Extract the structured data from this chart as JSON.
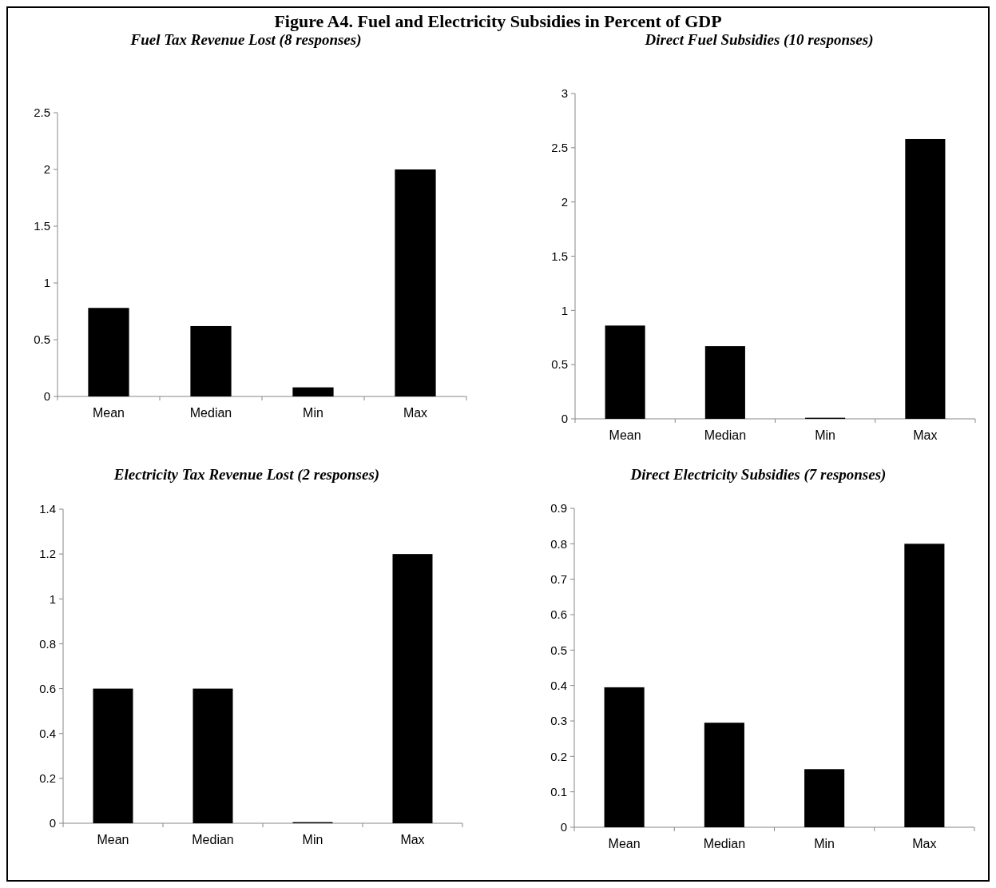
{
  "chart_data": [
    {
      "type": "bar",
      "title": "Figure A4. Fuel and Electricity Subsidies in Percent of GDP",
      "subtitle": "Fuel Tax Revenue Lost (8 responses)",
      "categories": [
        "Mean",
        "Median",
        "Min",
        "Max"
      ],
      "values": [
        0.78,
        0.62,
        0.08,
        2.0
      ],
      "color": "#000000",
      "ylim": [
        0,
        2.5
      ],
      "yticks": [
        0,
        0.5,
        1,
        1.5,
        2,
        2.5
      ]
    },
    {
      "type": "bar",
      "subtitle": "Direct Fuel Subsidies (10 responses)",
      "categories": [
        "Mean",
        "Median",
        "Min",
        "Max"
      ],
      "values": [
        0.86,
        0.67,
        0.01,
        2.58
      ],
      "color": "#000000",
      "ylim": [
        0,
        3
      ],
      "yticks": [
        0,
        0.5,
        1,
        1.5,
        2,
        2.5,
        3
      ]
    },
    {
      "type": "bar",
      "subtitle": "Electricity Tax Revenue Lost (2 responses)",
      "categories": [
        "Mean",
        "Median",
        "Min",
        "Max"
      ],
      "values": [
        0.6,
        0.6,
        0.005,
        1.2
      ],
      "color": "#000000",
      "ylim": [
        0,
        1.4
      ],
      "yticks": [
        0,
        0.2,
        0.4,
        0.6,
        0.8,
        1,
        1.2,
        1.4
      ]
    },
    {
      "type": "bar",
      "subtitle": "Direct Electricity Subsidies (7 responses)",
      "categories": [
        "Mean",
        "Median",
        "Min",
        "Max"
      ],
      "values": [
        0.395,
        0.295,
        0.164,
        0.8
      ],
      "color": "#000000",
      "ylim": [
        0,
        0.9
      ],
      "yticks": [
        0,
        0.1,
        0.2,
        0.3,
        0.4,
        0.5,
        0.6,
        0.7,
        0.8,
        0.9
      ]
    }
  ]
}
